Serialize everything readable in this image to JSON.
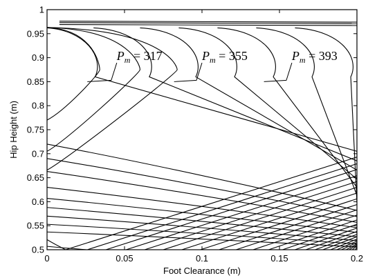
{
  "chart_data": {
    "type": "contour",
    "title": "",
    "xlabel": "Foot Clearance (m)",
    "ylabel": "Hip Height (m)",
    "xlim": [
      0,
      0.2
    ],
    "ylim": [
      0.5,
      1
    ],
    "xticks": [
      "0",
      "0.05",
      "0.1",
      "0.15",
      "0.2"
    ],
    "yticks": [
      "0.5",
      "0.55",
      "0.6",
      "0.65",
      "0.7",
      "0.75",
      "0.8",
      "0.85",
      "0.9",
      "0.95",
      "1"
    ],
    "grid": false,
    "labeled_contours": [
      {
        "symbol": "P",
        "subscript": "m",
        "text": " = 317",
        "value": 317,
        "label_at": [
          0.045,
          0.895
        ],
        "leader_to": [
          0.026,
          0.85
        ]
      },
      {
        "symbol": "P",
        "subscript": "m",
        "text": " = 355",
        "value": 355,
        "label_at": [
          0.1,
          0.895
        ],
        "leader_to": [
          0.082,
          0.85
        ]
      },
      {
        "symbol": "P",
        "subscript": "m",
        "text": " = 393",
        "value": 393,
        "label_at": [
          0.158,
          0.895
        ],
        "leader_to": [
          0.14,
          0.85
        ]
      }
    ],
    "family_a_nose_heights": [
      0.77,
      0.705,
      0.666
    ],
    "family_a_crest_height": 0.963,
    "family_a_nose_x": [
      0.0,
      0.0,
      0.0
    ],
    "family_b_nose_x": [
      0.025,
      0.06,
      0.09,
      0.115,
      0.14,
      0.165,
      0.19
    ],
    "family_b_crest_height": 0.962,
    "family_b_nose_heights": [
      0.962,
      0.962,
      0.962,
      0.962,
      0.962,
      0.962,
      0.962
    ],
    "straight_contours_left_heights": [
      0.63,
      0.607,
      0.588,
      0.57,
      0.553,
      0.537,
      0.521,
      0.507
    ],
    "straight_contours_bottom_x": [
      0.012,
      0.026,
      0.038,
      0.051,
      0.063,
      0.075,
      0.087,
      0.099,
      0.111,
      0.122,
      0.133,
      0.143,
      0.152,
      0.16,
      0.167,
      0.173,
      0.178,
      0.183,
      0.187,
      0.19,
      0.193,
      0.195,
      0.197,
      0.199
    ],
    "straight_contours_right_heights": [
      0.705,
      0.685,
      0.666,
      0.647,
      0.63,
      0.613,
      0.597,
      0.582,
      0.569,
      0.557,
      0.546,
      0.536,
      0.527,
      0.519,
      0.512,
      0.506
    ],
    "top_band_heights": [
      0.969,
      0.973,
      0.976
    ]
  }
}
